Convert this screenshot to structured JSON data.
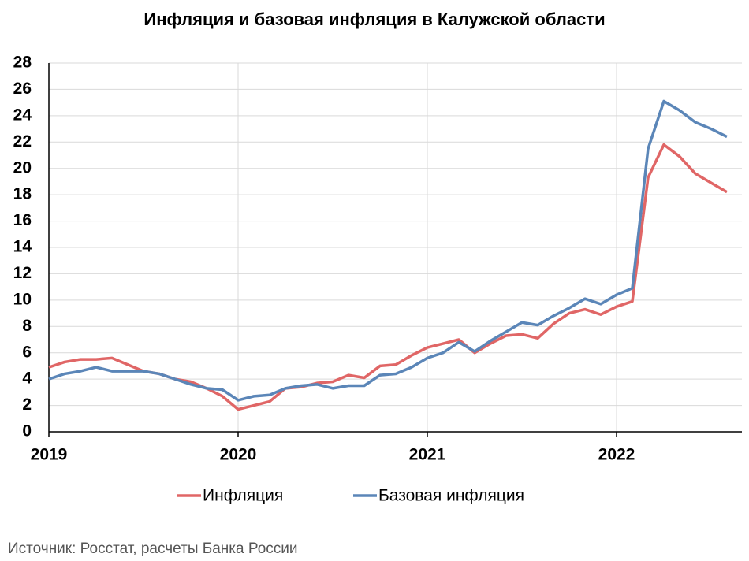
{
  "chart_data": {
    "type": "line",
    "title": "Инфляция и базовая инфляция в Калужской области",
    "source": "Источник: Росстат, расчеты Банка России",
    "categories": [
      "2019",
      null,
      null,
      null,
      null,
      null,
      null,
      null,
      null,
      null,
      null,
      null,
      "2020",
      null,
      null,
      null,
      null,
      null,
      null,
      null,
      null,
      null,
      null,
      null,
      "2021",
      null,
      null,
      null,
      null,
      null,
      null,
      null,
      null,
      null,
      null,
      null,
      "2022",
      null,
      null,
      null,
      null,
      null,
      null,
      null
    ],
    "series": [
      {
        "name": "Инфляция",
        "color": "#e06666",
        "values": [
          4.9,
          5.3,
          5.5,
          5.5,
          5.6,
          5.1,
          4.6,
          4.4,
          4.0,
          3.8,
          3.3,
          2.7,
          1.7,
          2.0,
          2.3,
          3.3,
          3.4,
          3.7,
          3.8,
          4.3,
          4.1,
          5.0,
          5.1,
          5.8,
          6.4,
          6.7,
          7.0,
          6.0,
          6.7,
          7.3,
          7.4,
          7.1,
          8.2,
          9.0,
          9.3,
          8.9,
          9.5,
          9.9,
          19.3,
          21.8,
          20.9,
          19.6,
          18.9,
          18.2
        ]
      },
      {
        "name": "Базовая инфляция",
        "color": "#5b86b8",
        "values": [
          4.0,
          4.4,
          4.6,
          4.9,
          4.6,
          4.6,
          4.6,
          4.4,
          4.0,
          3.6,
          3.3,
          3.2,
          2.4,
          2.7,
          2.8,
          3.3,
          3.5,
          3.6,
          3.3,
          3.5,
          3.5,
          4.3,
          4.4,
          4.9,
          5.6,
          6.0,
          6.8,
          6.1,
          6.9,
          7.6,
          8.3,
          8.1,
          8.8,
          9.4,
          10.1,
          9.7,
          10.4,
          10.9,
          21.5,
          25.1,
          24.4,
          23.5,
          23.0,
          22.4
        ]
      }
    ],
    "ylim": [
      0,
      28
    ],
    "yticks": [
      0,
      2,
      4,
      6,
      8,
      10,
      12,
      14,
      16,
      18,
      20,
      22,
      24,
      26,
      28
    ],
    "grid": true
  }
}
